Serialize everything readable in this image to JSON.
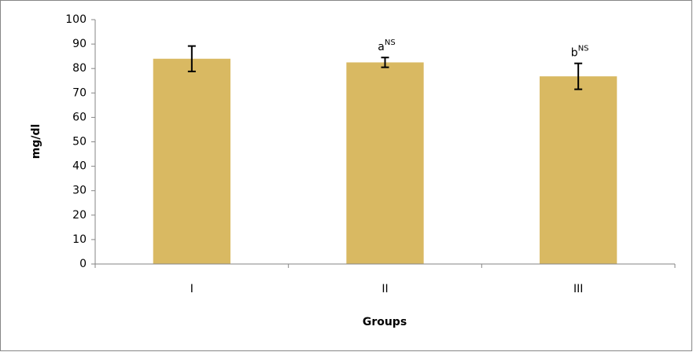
{
  "chart_data": {
    "type": "bar",
    "categories": [
      "I",
      "II",
      "III"
    ],
    "values": [
      84,
      82.5,
      76.8
    ],
    "errors": [
      5.2,
      2,
      5.3
    ],
    "color": "#d9b962",
    "ylim": [
      0,
      100
    ],
    "yticks": [
      0,
      10,
      20,
      30,
      40,
      50,
      60,
      70,
      80,
      90,
      100
    ],
    "ylabel": "mg/dl",
    "xlabel": "Groups",
    "annotations": [
      {
        "category": "II",
        "text": "a",
        "superscript": "NS"
      },
      {
        "category": "III",
        "text": "b",
        "superscript": "NS"
      }
    ]
  }
}
